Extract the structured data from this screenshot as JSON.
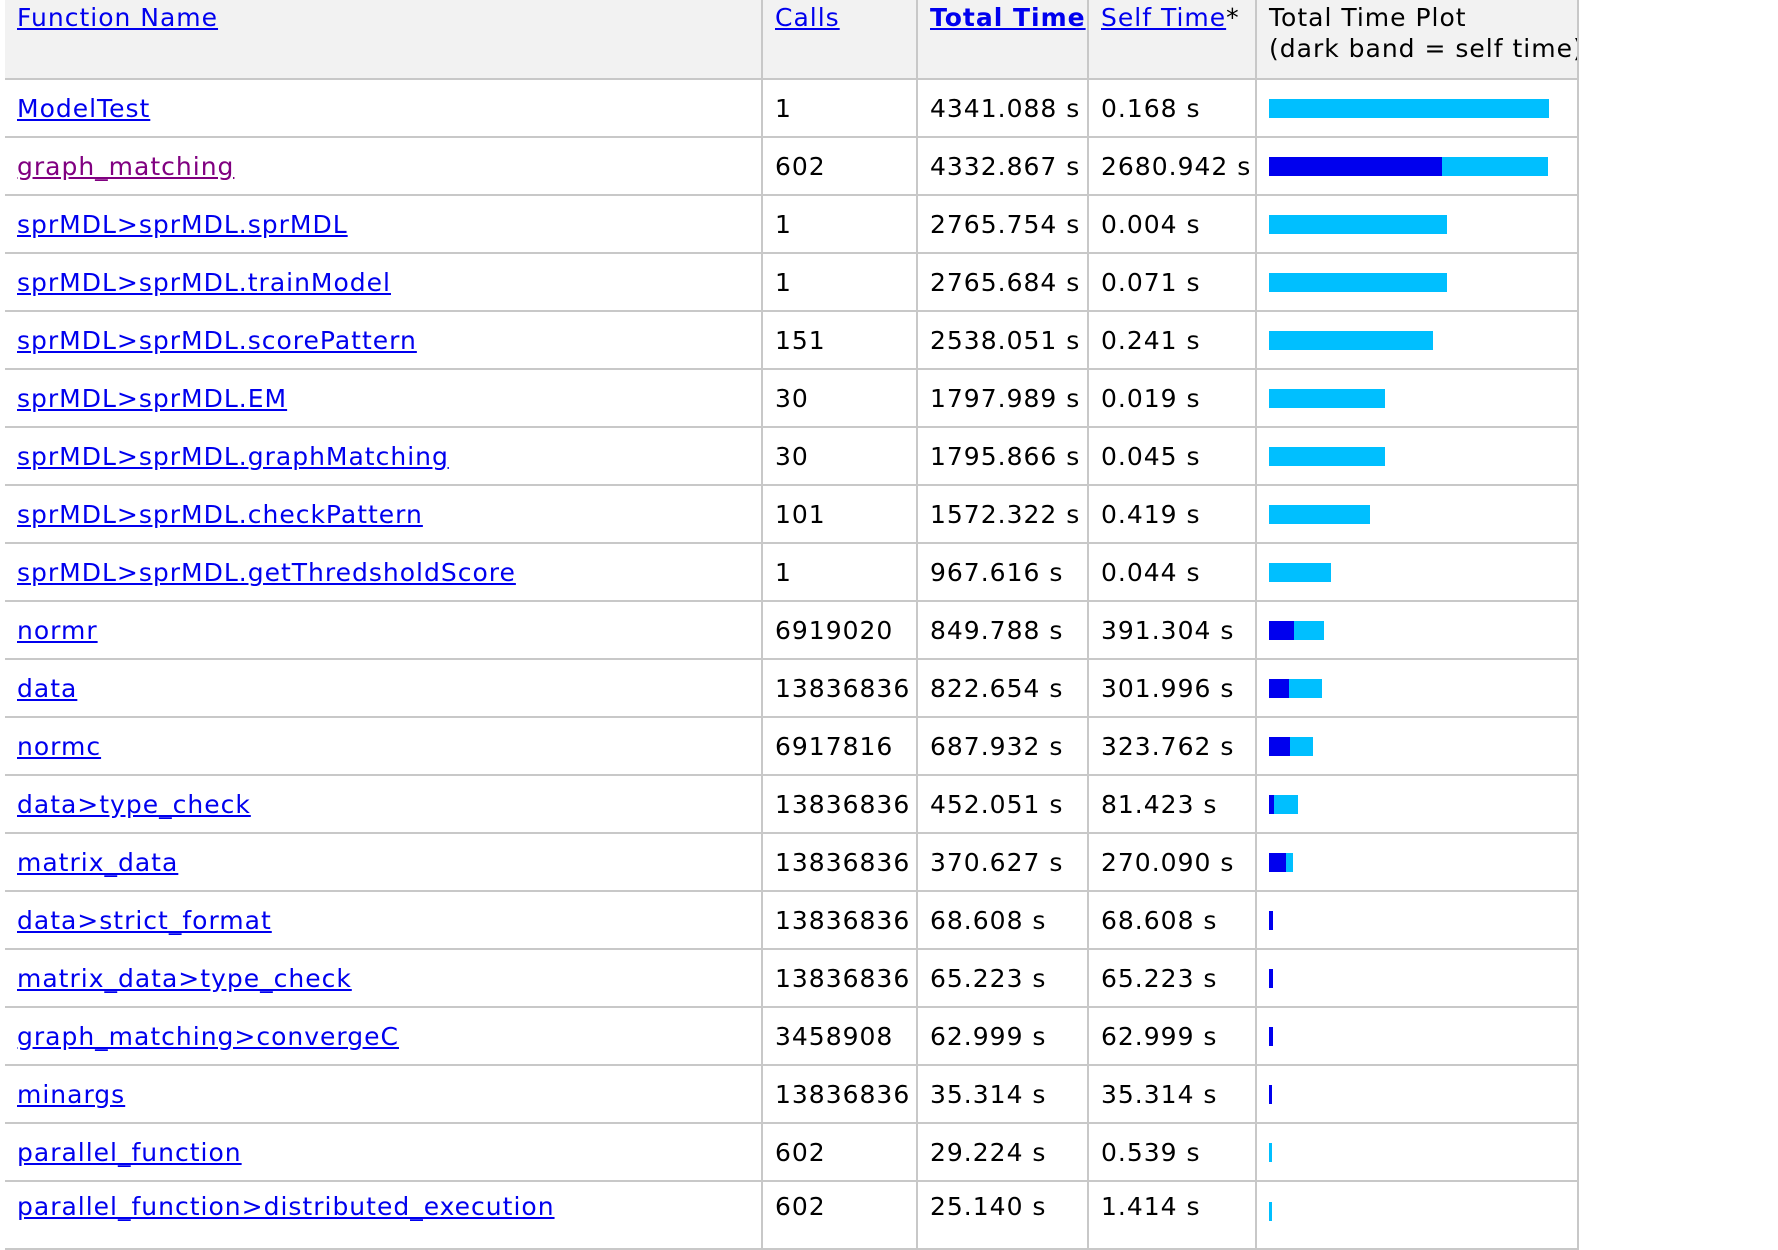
{
  "colors": {
    "total_bar": "#00bfff",
    "self_bar": "#0000ee",
    "link": "#0000ee",
    "visited_link": "#800080",
    "header_bg": "#f2f2f2"
  },
  "table": {
    "headers": {
      "name": "Function Name",
      "calls": "Calls",
      "total_time": "Total Time",
      "self_time": "Self Time",
      "self_time_mark": "*",
      "plot_line1": "Total Time Plot",
      "plot_line2": "(dark band = self time)"
    },
    "rows": [
      {
        "name": "ModelTest",
        "calls": "1",
        "total_time": "4341.088 s",
        "self_time": "0.168 s",
        "total_fraction": 1.0,
        "self_fraction": 0.0
      },
      {
        "name": "graph_matching",
        "calls": "602",
        "total_time": "4332.867 s",
        "self_time": "2680.942 s",
        "total_fraction": 0.998,
        "self_fraction": 0.618,
        "visited": true
      },
      {
        "name": "sprMDL>sprMDL.sprMDL",
        "calls": "1",
        "total_time": "2765.754 s",
        "self_time": "0.004 s",
        "total_fraction": 0.637,
        "self_fraction": 0.0
      },
      {
        "name": "sprMDL>sprMDL.trainModel",
        "calls": "1",
        "total_time": "2765.684 s",
        "self_time": "0.071 s",
        "total_fraction": 0.637,
        "self_fraction": 0.0
      },
      {
        "name": "sprMDL>sprMDL.scorePattern",
        "calls": "151",
        "total_time": "2538.051 s",
        "self_time": "0.241 s",
        "total_fraction": 0.585,
        "self_fraction": 0.0
      },
      {
        "name": "sprMDL>sprMDL.EM",
        "calls": "30",
        "total_time": "1797.989 s",
        "self_time": "0.019 s",
        "total_fraction": 0.414,
        "self_fraction": 0.0
      },
      {
        "name": "sprMDL>sprMDL.graphMatching",
        "calls": "30",
        "total_time": "1795.866 s",
        "self_time": "0.045 s",
        "total_fraction": 0.414,
        "self_fraction": 0.0
      },
      {
        "name": "sprMDL>sprMDL.checkPattern",
        "calls": "101",
        "total_time": "1572.322 s",
        "self_time": "0.419 s",
        "total_fraction": 0.362,
        "self_fraction": 0.0
      },
      {
        "name": "sprMDL>sprMDL.getThredsholdScore",
        "calls": "1",
        "total_time": "967.616 s",
        "self_time": "0.044 s",
        "total_fraction": 0.223,
        "self_fraction": 0.0
      },
      {
        "name": "normr",
        "calls": "6919020",
        "total_time": "849.788 s",
        "self_time": "391.304 s",
        "total_fraction": 0.196,
        "self_fraction": 0.09
      },
      {
        "name": "data",
        "calls": "13836836",
        "total_time": "822.654 s",
        "self_time": "301.996 s",
        "total_fraction": 0.19,
        "self_fraction": 0.07
      },
      {
        "name": "normc",
        "calls": "6917816",
        "total_time": "687.932 s",
        "self_time": "323.762 s",
        "total_fraction": 0.158,
        "self_fraction": 0.075
      },
      {
        "name": "data>type_check",
        "calls": "13836836",
        "total_time": "452.051 s",
        "self_time": "81.423 s",
        "total_fraction": 0.104,
        "self_fraction": 0.019
      },
      {
        "name": "matrix_data",
        "calls": "13836836",
        "total_time": "370.627 s",
        "self_time": "270.090 s",
        "total_fraction": 0.085,
        "self_fraction": 0.062
      },
      {
        "name": "data>strict_format",
        "calls": "13836836",
        "total_time": "68.608 s",
        "self_time": "68.608 s",
        "total_fraction": 0.016,
        "self_fraction": 0.016
      },
      {
        "name": "matrix_data>type_check",
        "calls": "13836836",
        "total_time": "65.223 s",
        "self_time": "65.223 s",
        "total_fraction": 0.015,
        "self_fraction": 0.015
      },
      {
        "name": "graph_matching>convergeC",
        "calls": "3458908",
        "total_time": "62.999 s",
        "self_time": "62.999 s",
        "total_fraction": 0.0145,
        "self_fraction": 0.0145
      },
      {
        "name": "minargs",
        "calls": "13836836",
        "total_time": "35.314 s",
        "self_time": "35.314 s",
        "total_fraction": 0.008,
        "self_fraction": 0.008
      },
      {
        "name": "parallel_function",
        "calls": "602",
        "total_time": "29.224 s",
        "self_time": "0.539 s",
        "total_fraction": 0.0067,
        "self_fraction": 0.0
      },
      {
        "name": "parallel_function>distributed_execution",
        "calls": "602",
        "total_time": "25.140 s",
        "self_time": "1.414 s",
        "total_fraction": 0.0058,
        "self_fraction": 0.0
      }
    ]
  }
}
